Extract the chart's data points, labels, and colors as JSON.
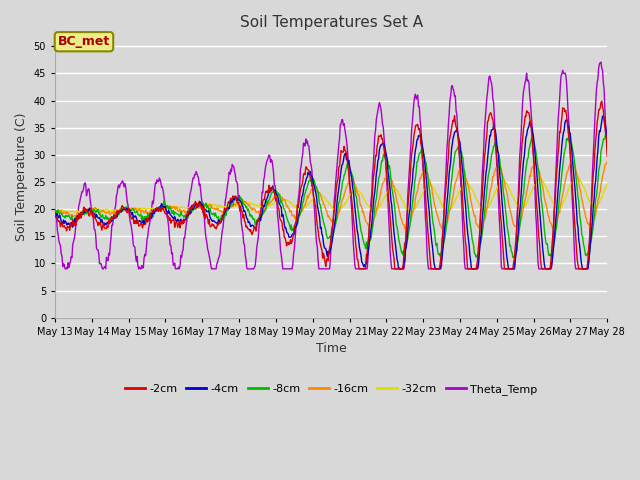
{
  "title": "Soil Temperatures Set A",
  "xlabel": "Time",
  "ylabel": "Soil Temperature (C)",
  "annotation": "BC_met",
  "ylim": [
    0,
    52
  ],
  "yticks": [
    0,
    5,
    10,
    15,
    20,
    25,
    30,
    35,
    40,
    45,
    50
  ],
  "series_colors": {
    "-2cm": "#dd0000",
    "-4cm": "#0000cc",
    "-8cm": "#00bb00",
    "-16cm": "#ff8800",
    "-32cm": "#dddd00",
    "Theta_Temp": "#aa00cc"
  },
  "background_color": "#d8d8d8",
  "plot_bg_color": "#d8d8d8",
  "grid_color": "#ffffff",
  "start_day": 13,
  "num_days": 16
}
